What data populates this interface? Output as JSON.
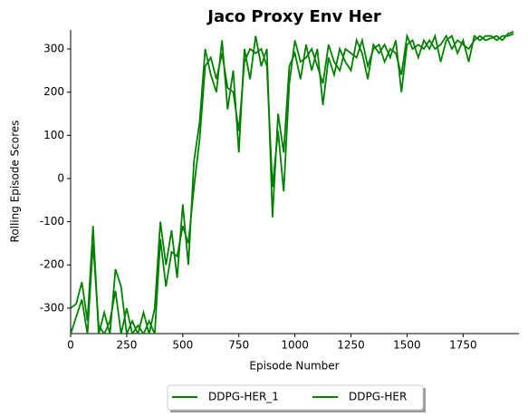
{
  "chart_data": {
    "type": "line",
    "title": "Jaco Proxy Env Her",
    "xlabel": "Episode Number",
    "ylabel": "Rolling Episode Scores",
    "x": [
      0,
      25,
      50,
      75,
      100,
      125,
      150,
      175,
      200,
      225,
      250,
      275,
      300,
      325,
      350,
      375,
      400,
      425,
      450,
      475,
      500,
      525,
      550,
      575,
      600,
      625,
      650,
      675,
      700,
      725,
      750,
      775,
      800,
      825,
      850,
      875,
      900,
      925,
      950,
      975,
      1000,
      1025,
      1050,
      1075,
      1100,
      1125,
      1150,
      1175,
      1200,
      1225,
      1250,
      1275,
      1300,
      1325,
      1350,
      1375,
      1400,
      1425,
      1450,
      1475,
      1500,
      1525,
      1550,
      1575,
      1600,
      1625,
      1650,
      1675,
      1700,
      1725,
      1750,
      1775,
      1800,
      1825,
      1850,
      1875,
      1900,
      1925,
      1950,
      1975
    ],
    "series": [
      {
        "name": "DDPG-HER_1",
        "color": "#008000",
        "values": [
          -300,
          -290,
          -240,
          -330,
          -110,
          -360,
          -310,
          -360,
          -210,
          -250,
          -360,
          -330,
          -360,
          -310,
          -360,
          -300,
          -100,
          -200,
          -120,
          -230,
          -60,
          -200,
          40,
          130,
          300,
          240,
          200,
          320,
          160,
          250,
          60,
          300,
          230,
          330,
          260,
          300,
          -90,
          150,
          60,
          260,
          290,
          230,
          310,
          250,
          300,
          170,
          280,
          240,
          300,
          270,
          250,
          320,
          290,
          230,
          310,
          290,
          310,
          280,
          320,
          200,
          310,
          320,
          280,
          320,
          300,
          330,
          270,
          320,
          330,
          290,
          320,
          270,
          330,
          320,
          330,
          330,
          320,
          330,
          330,
          335
        ]
      },
      {
        "name": "DDPG-HER",
        "color": "#008000",
        "values": [
          -360,
          -320,
          -280,
          -360,
          -150,
          -340,
          -360,
          -330,
          -260,
          -360,
          -300,
          -360,
          -340,
          -360,
          -330,
          -360,
          -140,
          -250,
          -170,
          -180,
          -110,
          -150,
          -20,
          90,
          260,
          280,
          230,
          290,
          210,
          200,
          110,
          270,
          300,
          290,
          300,
          260,
          -20,
          110,
          -30,
          220,
          320,
          270,
          280,
          300,
          260,
          220,
          310,
          270,
          250,
          300,
          290,
          280,
          320,
          260,
          300,
          310,
          270,
          300,
          290,
          240,
          330,
          300,
          310,
          300,
          320,
          300,
          310,
          330,
          300,
          320,
          310,
          300,
          320,
          330,
          320,
          325,
          330,
          320,
          335,
          340
        ]
      }
    ],
    "xlim": [
      0,
      1999
    ],
    "ylim": [
      -359,
      344
    ],
    "xticks": [
      0,
      250,
      500,
      750,
      1000,
      1250,
      1500,
      1750
    ],
    "yticks": [
      -300,
      -200,
      -100,
      0,
      100,
      200,
      300
    ],
    "grid": false,
    "legend": "below"
  }
}
